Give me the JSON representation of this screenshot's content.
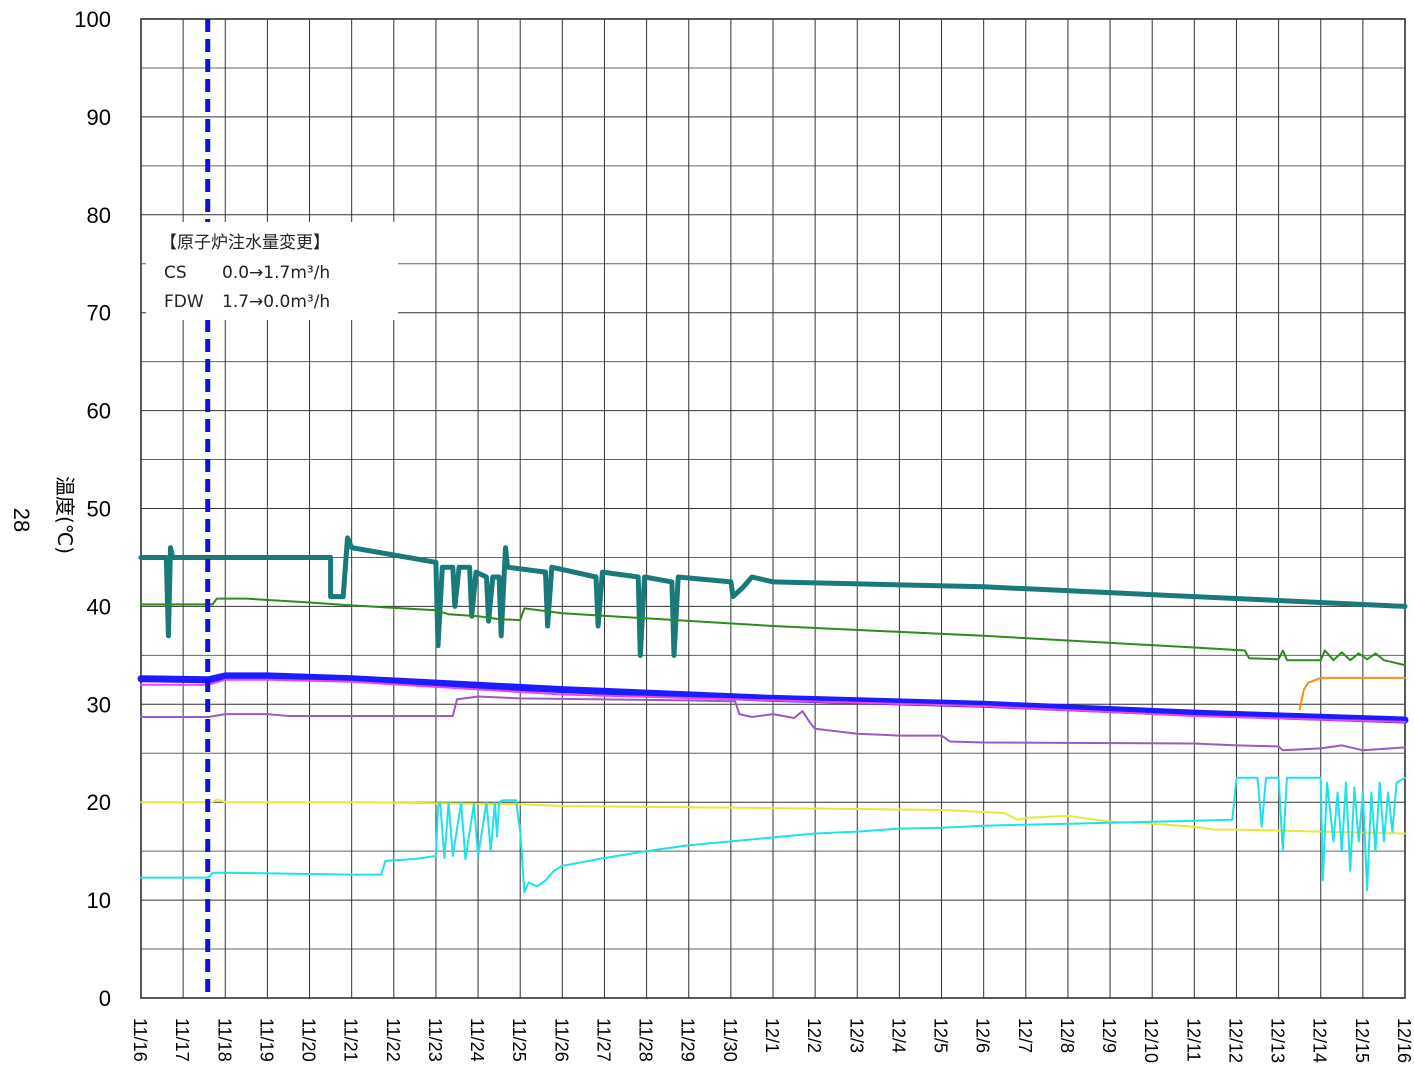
{
  "page_number": "28",
  "chart_data": {
    "type": "line",
    "title": "",
    "ylabel": "温度(℃)",
    "xlabel": "",
    "ylim": [
      0,
      100
    ],
    "yticks": [
      "0",
      "10",
      "20",
      "30",
      "40",
      "50",
      "60",
      "70",
      "80",
      "90",
      "100"
    ],
    "x_dates": [
      "11/16",
      "11/17",
      "11/18",
      "11/19",
      "11/20",
      "11/21",
      "11/22",
      "11/23",
      "11/24",
      "11/25",
      "11/26",
      "11/27",
      "11/28",
      "11/29",
      "11/30",
      "12/1",
      "12/2",
      "12/3",
      "12/4",
      "12/5",
      "12/6",
      "12/7",
      "12/8",
      "12/9",
      "12/10",
      "12/11",
      "12/12",
      "12/13",
      "12/14",
      "12/15",
      "12/16"
    ],
    "grid": true,
    "event_line": {
      "x": "11/17 14:00",
      "color": "#1010dd"
    },
    "annotation": {
      "title": "【原子炉注水量変更】",
      "line1_label": "CS",
      "line1_value": "0.0→1.7m³/h",
      "line2_label": "FDW",
      "line2_value": "1.7→0.0m³/h"
    },
    "series": [
      {
        "color": "#1a7a7a",
        "width": 5,
        "points": [
          [
            0,
            45
          ],
          [
            0.6,
            45
          ],
          [
            0.65,
            37
          ],
          [
            0.7,
            46
          ],
          [
            0.75,
            45
          ],
          [
            4.5,
            45
          ],
          [
            4.5,
            41
          ],
          [
            4.8,
            41
          ],
          [
            4.9,
            47
          ],
          [
            5.0,
            46
          ],
          [
            7.0,
            44.5
          ],
          [
            7.05,
            36
          ],
          [
            7.15,
            44
          ],
          [
            7.4,
            44
          ],
          [
            7.45,
            40
          ],
          [
            7.55,
            44
          ],
          [
            7.8,
            44
          ],
          [
            7.85,
            39
          ],
          [
            7.95,
            43.5
          ],
          [
            8.2,
            43
          ],
          [
            8.25,
            38.5
          ],
          [
            8.35,
            43
          ],
          [
            8.5,
            43
          ],
          [
            8.55,
            37
          ],
          [
            8.65,
            46
          ],
          [
            8.7,
            44
          ],
          [
            9.6,
            43.5
          ],
          [
            9.65,
            38
          ],
          [
            9.75,
            44
          ],
          [
            10.8,
            43
          ],
          [
            10.85,
            38
          ],
          [
            10.95,
            43.5
          ],
          [
            11.8,
            43
          ],
          [
            11.85,
            35
          ],
          [
            11.95,
            43
          ],
          [
            12.6,
            42.5
          ],
          [
            12.65,
            35
          ],
          [
            12.75,
            43
          ],
          [
            14.0,
            42.5
          ],
          [
            14.05,
            41
          ],
          [
            14.3,
            42
          ],
          [
            14.5,
            43
          ],
          [
            15,
            42.5
          ],
          [
            20,
            42
          ],
          [
            30,
            40
          ]
        ]
      },
      {
        "color": "#2e8b1e",
        "width": 2,
        "points": [
          [
            0,
            40.2
          ],
          [
            1.7,
            40.2
          ],
          [
            1.75,
            40.5
          ],
          [
            1.8,
            40.8
          ],
          [
            2.5,
            40.8
          ],
          [
            4,
            40.4
          ],
          [
            5,
            40.1
          ],
          [
            7,
            39.6
          ],
          [
            7.3,
            39.2
          ],
          [
            8,
            39
          ],
          [
            8.5,
            38.7
          ],
          [
            9.0,
            38.6
          ],
          [
            9.1,
            39.8
          ],
          [
            10,
            39.3
          ],
          [
            15,
            38
          ],
          [
            20,
            37
          ],
          [
            25,
            35.8
          ],
          [
            26.2,
            35.5
          ],
          [
            26.3,
            34.7
          ],
          [
            27,
            34.6
          ],
          [
            27.1,
            35.5
          ],
          [
            27.2,
            34.5
          ],
          [
            28,
            34.5
          ],
          [
            28.1,
            35.5
          ],
          [
            28.3,
            34.5
          ],
          [
            28.5,
            35.3
          ],
          [
            28.7,
            34.5
          ],
          [
            28.9,
            35.2
          ],
          [
            29.1,
            34.6
          ],
          [
            29.3,
            35.2
          ],
          [
            29.5,
            34.5
          ],
          [
            30,
            34
          ]
        ]
      },
      {
        "color": "#ff8c1a",
        "width": 2,
        "points": [
          [
            27.5,
            29.5
          ],
          [
            27.6,
            31.5
          ],
          [
            27.7,
            32.2
          ],
          [
            28,
            32.7
          ],
          [
            30,
            32.7
          ]
        ]
      },
      {
        "color": "#1c1cff",
        "width": 7,
        "points": [
          [
            0,
            32.6
          ],
          [
            1.6,
            32.5
          ],
          [
            2.0,
            32.9
          ],
          [
            3,
            32.9
          ],
          [
            5,
            32.6
          ],
          [
            10,
            31.5
          ],
          [
            15,
            30.6
          ],
          [
            20,
            30
          ],
          [
            25,
            29.1
          ],
          [
            30,
            28.4
          ]
        ]
      },
      {
        "color": "#ee44ee",
        "width": 2,
        "points": [
          [
            0,
            32
          ],
          [
            1.6,
            32
          ],
          [
            2.0,
            32.5
          ],
          [
            3,
            32.5
          ],
          [
            5,
            32.3
          ],
          [
            10,
            31
          ],
          [
            15,
            30.4
          ],
          [
            20,
            29.8
          ],
          [
            25,
            28.8
          ],
          [
            30,
            28.2
          ]
        ]
      },
      {
        "color": "#9b59c6",
        "width": 2,
        "points": [
          [
            0,
            28.7
          ],
          [
            1.6,
            28.7
          ],
          [
            2,
            29
          ],
          [
            3,
            29
          ],
          [
            3.5,
            28.8
          ],
          [
            6,
            28.8
          ],
          [
            7.4,
            28.8
          ],
          [
            7.5,
            30.5
          ],
          [
            8,
            30.8
          ],
          [
            9,
            30.6
          ],
          [
            13,
            30.4
          ],
          [
            14.1,
            30.3
          ],
          [
            14.2,
            29
          ],
          [
            14.5,
            28.7
          ],
          [
            15,
            29
          ],
          [
            15.5,
            28.6
          ],
          [
            15.7,
            29.3
          ],
          [
            15.9,
            28
          ],
          [
            16,
            27.5
          ],
          [
            17,
            27
          ],
          [
            18,
            26.8
          ],
          [
            19,
            26.8
          ],
          [
            19.2,
            26.2
          ],
          [
            20,
            26.1
          ],
          [
            25,
            26
          ],
          [
            26,
            25.8
          ],
          [
            27,
            25.7
          ],
          [
            27.1,
            25.3
          ],
          [
            28,
            25.5
          ],
          [
            28.5,
            25.8
          ],
          [
            29,
            25.3
          ],
          [
            30,
            25.6
          ]
        ]
      },
      {
        "color": "#e8e83a",
        "width": 2,
        "points": [
          [
            0,
            20
          ],
          [
            1.7,
            20
          ],
          [
            1.8,
            20.3
          ],
          [
            2,
            20
          ],
          [
            5,
            20
          ],
          [
            9,
            19.8
          ],
          [
            10,
            19.6
          ],
          [
            15,
            19.4
          ],
          [
            19,
            19.2
          ],
          [
            20,
            19
          ],
          [
            20.5,
            18.9
          ],
          [
            20.8,
            18.2
          ],
          [
            21,
            18.4
          ],
          [
            22,
            18.6
          ],
          [
            23,
            18
          ],
          [
            24,
            17.8
          ],
          [
            25,
            17.5
          ],
          [
            25.5,
            17.2
          ],
          [
            26,
            17.2
          ],
          [
            28,
            17
          ],
          [
            30,
            16.8
          ]
        ]
      },
      {
        "color": "#20e0e8",
        "width": 2,
        "points": [
          [
            0,
            12.3
          ],
          [
            1.6,
            12.3
          ],
          [
            1.7,
            12.8
          ],
          [
            2,
            12.8
          ],
          [
            5,
            12.6
          ],
          [
            5.7,
            12.6
          ],
          [
            5.8,
            14
          ],
          [
            6.5,
            14.2
          ],
          [
            7.0,
            14.5
          ],
          [
            7.05,
            19.5
          ],
          [
            7.1,
            20
          ],
          [
            7.2,
            14.3
          ],
          [
            7.3,
            20
          ],
          [
            7.4,
            14.5
          ],
          [
            7.6,
            20
          ],
          [
            7.7,
            14.2
          ],
          [
            7.9,
            19.8
          ],
          [
            8.0,
            14.5
          ],
          [
            8.2,
            20
          ],
          [
            8.3,
            15
          ],
          [
            8.4,
            20
          ],
          [
            8.45,
            16.5
          ],
          [
            8.5,
            20
          ],
          [
            8.6,
            20.2
          ],
          [
            8.9,
            20.2
          ],
          [
            9.0,
            17
          ],
          [
            9.1,
            10.8
          ],
          [
            9.2,
            11.8
          ],
          [
            9.4,
            11.4
          ],
          [
            9.6,
            12
          ],
          [
            9.8,
            13
          ],
          [
            10,
            13.5
          ],
          [
            11,
            14.3
          ],
          [
            12,
            15
          ],
          [
            13,
            15.6
          ],
          [
            14,
            16
          ],
          [
            15,
            16.4
          ],
          [
            16,
            16.8
          ],
          [
            17,
            17
          ],
          [
            18,
            17.3
          ],
          [
            19,
            17.4
          ],
          [
            20,
            17.6
          ],
          [
            21,
            17.7
          ],
          [
            22,
            17.8
          ],
          [
            23,
            17.9
          ],
          [
            24,
            18
          ],
          [
            25,
            18.1
          ],
          [
            25.9,
            18.2
          ],
          [
            26.0,
            22.5
          ],
          [
            26.5,
            22.5
          ],
          [
            26.6,
            17.5
          ],
          [
            26.7,
            22.5
          ],
          [
            27,
            22.5
          ],
          [
            27.1,
            15
          ],
          [
            27.2,
            22.5
          ],
          [
            28,
            22.5
          ],
          [
            28.05,
            12
          ],
          [
            28.15,
            22
          ],
          [
            28.3,
            16
          ],
          [
            28.4,
            21
          ],
          [
            28.5,
            15
          ],
          [
            28.6,
            22
          ],
          [
            28.7,
            13
          ],
          [
            28.8,
            21.5
          ],
          [
            28.9,
            16
          ],
          [
            29.0,
            21
          ],
          [
            29.1,
            11
          ],
          [
            29.2,
            21
          ],
          [
            29.3,
            15
          ],
          [
            29.4,
            22
          ],
          [
            29.5,
            16
          ],
          [
            29.6,
            21
          ],
          [
            29.7,
            17
          ],
          [
            29.8,
            22
          ],
          [
            30,
            22.5
          ]
        ]
      }
    ]
  }
}
